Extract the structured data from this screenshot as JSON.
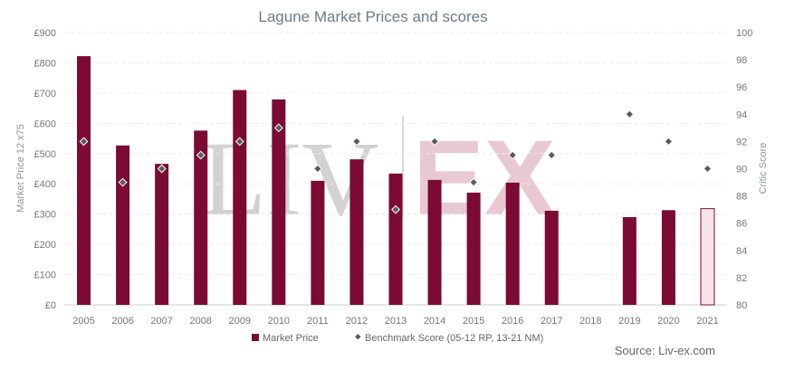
{
  "chart_data": {
    "type": "bar",
    "title": "Lagune Market Prices and scores",
    "categories": [
      "2005",
      "2006",
      "2007",
      "2008",
      "2009",
      "2010",
      "2011",
      "2012",
      "2013",
      "2014",
      "2015",
      "2016",
      "2017",
      "2018",
      "2019",
      "2020",
      "2021"
    ],
    "series": [
      {
        "name": "Market Price",
        "type": "bar",
        "axis": "left",
        "color": "#7b0a34",
        "values": [
          822,
          527,
          466,
          576,
          710,
          679,
          410,
          481,
          434,
          413,
          371,
          404,
          311,
          null,
          290,
          313,
          318
        ]
      },
      {
        "name": "Benchmark Score (05-12 RP, 13-21 NM)",
        "type": "scatter",
        "axis": "right",
        "color": "#555b61",
        "values": [
          92,
          89,
          90,
          91,
          92,
          93,
          90,
          92,
          87,
          92,
          89,
          91,
          91,
          null,
          94,
          92,
          90
        ]
      }
    ],
    "highlight_last_bar": {
      "fill": "#f6e4ea",
      "stroke": "#7b0a34"
    },
    "y_left": {
      "label": "Market Price 12 x75",
      "ylim": [
        0,
        900
      ],
      "ticks": [
        "£0",
        "£100",
        "£200",
        "£300",
        "£400",
        "£500",
        "£600",
        "£700",
        "£800",
        "£900"
      ]
    },
    "y_right": {
      "label": "Critic Score",
      "ylim": [
        80,
        100
      ],
      "ticks": [
        "80",
        "82",
        "84",
        "86",
        "88",
        "90",
        "92",
        "94",
        "96",
        "98",
        "100"
      ]
    },
    "grid": true,
    "legend": "bottom",
    "source": "Source: Liv-ex.com",
    "watermark": {
      "left": "LIV",
      "right": "EX"
    }
  }
}
